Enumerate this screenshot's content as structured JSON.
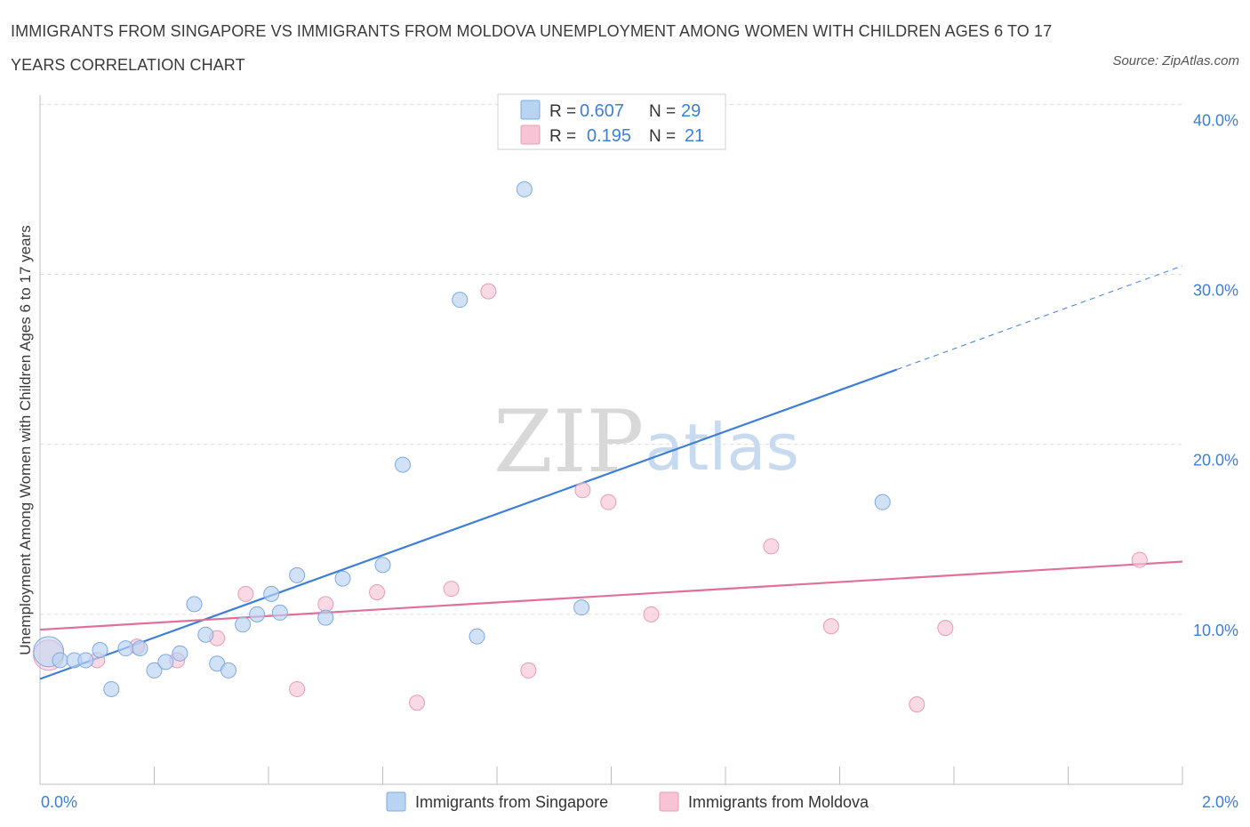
{
  "title": "IMMIGRANTS FROM SINGAPORE VS IMMIGRANTS FROM MOLDOVA UNEMPLOYMENT AMONG WOMEN WITH CHILDREN AGES 6 TO 17 YEARS CORRELATION CHART",
  "source": "Source: ZipAtlas.com",
  "watermark": {
    "zip": "ZIP",
    "atlas": "atlas"
  },
  "colors": {
    "blue": "#3d7fd6",
    "blue_fill": "#b9d3f3",
    "pink": "#e0709a",
    "pink_fill": "#f6c4d5"
  },
  "legend": {
    "r_label": "R =",
    "n_label": "N =",
    "singapore": {
      "r": "0.607",
      "n": "29"
    },
    "moldova": {
      "r": "0.195",
      "n": "21"
    }
  },
  "chart_data": {
    "type": "scatter",
    "xlabel": "",
    "ylabel": "Unemployment Among Women with Children Ages 6 to 17 years",
    "xlim": [
      0.0,
      2.0
    ],
    "ylim": [
      0.0,
      40.0
    ],
    "x_tick_labels": [
      "0.0%",
      "2.0%"
    ],
    "y_ticks": [
      10,
      20,
      30,
      40
    ],
    "y_tick_labels": [
      "10.0%",
      "20.0%",
      "30.0%",
      "40.0%"
    ],
    "grid": true,
    "series": [
      {
        "name": "Immigrants from Singapore",
        "color": "#3d7fd6",
        "points": [
          [
            0.015,
            7.8
          ],
          [
            0.035,
            7.3
          ],
          [
            0.06,
            7.3
          ],
          [
            0.08,
            7.3
          ],
          [
            0.105,
            7.9
          ],
          [
            0.125,
            5.6
          ],
          [
            0.15,
            8.0
          ],
          [
            0.175,
            8.0
          ],
          [
            0.2,
            6.7
          ],
          [
            0.22,
            7.2
          ],
          [
            0.245,
            7.7
          ],
          [
            0.27,
            10.6
          ],
          [
            0.29,
            8.8
          ],
          [
            0.31,
            7.1
          ],
          [
            0.33,
            6.7
          ],
          [
            0.355,
            9.4
          ],
          [
            0.38,
            10.0
          ],
          [
            0.405,
            11.2
          ],
          [
            0.42,
            10.1
          ],
          [
            0.45,
            12.3
          ],
          [
            0.5,
            9.8
          ],
          [
            0.53,
            12.1
          ],
          [
            0.6,
            12.9
          ],
          [
            0.635,
            18.8
          ],
          [
            0.735,
            28.5
          ],
          [
            0.765,
            8.7
          ],
          [
            0.848,
            35.0
          ],
          [
            0.948,
            10.4
          ],
          [
            1.475,
            16.6
          ]
        ],
        "trend": {
          "x0": 0.0,
          "y0": 6.2,
          "x1": 1.5,
          "y1": 24.4,
          "dashed_to_x": 2.0,
          "dashed_to_y": 30.5
        }
      },
      {
        "name": "Immigrants from Moldova",
        "color": "#e0709a",
        "points": [
          [
            0.015,
            7.6
          ],
          [
            0.1,
            7.3
          ],
          [
            0.17,
            8.1
          ],
          [
            0.24,
            7.3
          ],
          [
            0.31,
            8.6
          ],
          [
            0.36,
            11.2
          ],
          [
            0.45,
            5.6
          ],
          [
            0.5,
            10.6
          ],
          [
            0.59,
            11.3
          ],
          [
            0.66,
            4.8
          ],
          [
            0.72,
            11.5
          ],
          [
            0.785,
            29.0
          ],
          [
            0.855,
            6.7
          ],
          [
            0.95,
            17.3
          ],
          [
            0.995,
            16.6
          ],
          [
            1.07,
            10.0
          ],
          [
            1.28,
            14.0
          ],
          [
            1.385,
            9.3
          ],
          [
            1.535,
            4.7
          ],
          [
            1.585,
            9.2
          ],
          [
            1.925,
            13.2
          ]
        ],
        "trend": {
          "x0": 0.0,
          "y0": 9.1,
          "x1": 2.0,
          "y1": 13.1
        }
      }
    ]
  },
  "bottom_legend": {
    "singapore": "Immigrants from Singapore",
    "moldova": "Immigrants from Moldova"
  }
}
